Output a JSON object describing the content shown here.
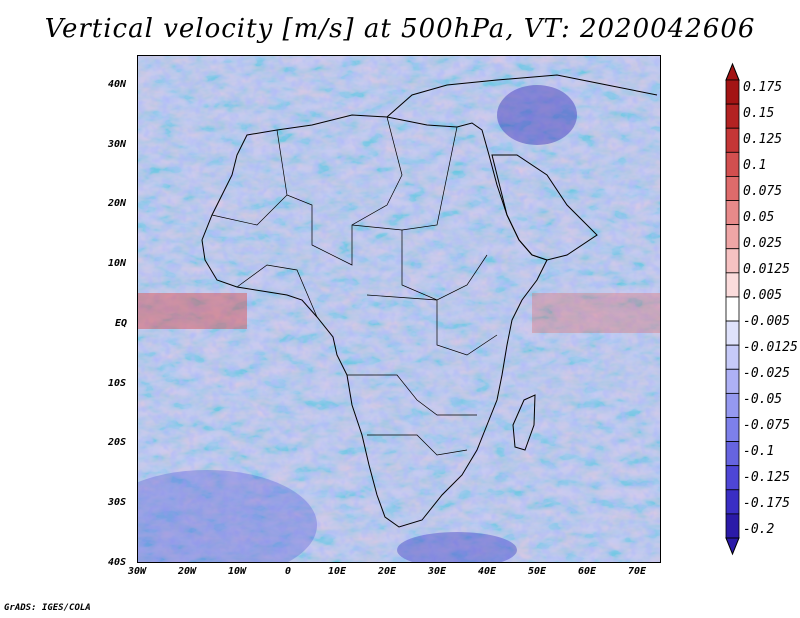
{
  "title": "Vertical velocity [m/s] at 500hPa, VT: 2020042606",
  "credit": "GrADS: IGES/COLA",
  "map": {
    "lon_range": [
      -30,
      75
    ],
    "lat_range": [
      -40,
      45
    ],
    "lat_ticks": [
      "40N",
      "30N",
      "20N",
      "10N",
      "EQ",
      "10S",
      "20S",
      "30S",
      "40S"
    ],
    "lon_ticks": [
      "30W",
      "20W",
      "10W",
      "0",
      "10E",
      "20E",
      "30E",
      "40E",
      "50E",
      "60E",
      "70E"
    ]
  },
  "colorbar": {
    "colors": [
      "#2b1aa8",
      "#3a2ec4",
      "#4e46d6",
      "#6664e0",
      "#7d80ea",
      "#9599f0",
      "#aeb1f5",
      "#c6caf8",
      "#dfe2fb",
      "#ffffff",
      "#fbdcdc",
      "#f6c2c2",
      "#efa6a6",
      "#e88a8a",
      "#de6b6b",
      "#d24f4f",
      "#c43636",
      "#b32222",
      "#a31414"
    ],
    "labels": [
      "0.175",
      "0.15",
      "0.125",
      "0.1",
      "0.075",
      "0.05",
      "0.025",
      "0.0125",
      "0.005",
      "-0.005",
      "-0.0125",
      "-0.025",
      "-0.05",
      "-0.075",
      "-0.1",
      "-0.125",
      "-0.175",
      "-0.2"
    ]
  }
}
